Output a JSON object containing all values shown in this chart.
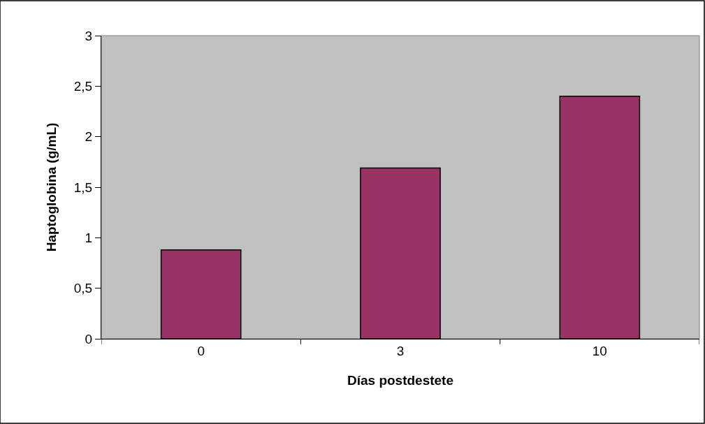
{
  "chart_data": {
    "type": "bar",
    "xlabel": "Días postdestete",
    "ylabel": "Haptoglobina (g/mL)",
    "categories": [
      "0",
      "3",
      "10"
    ],
    "values": [
      0.88,
      1.69,
      2.4
    ],
    "color": "#993366",
    "ylim": [
      0,
      3
    ],
    "yticks": [
      0,
      {
        "value": 0.5,
        "label": "0,5"
      },
      1,
      {
        "value": 1.5,
        "label": "1,5"
      },
      2,
      {
        "value": 2.5,
        "label": "2,5"
      },
      3
    ],
    "grid": false,
    "legend": false
  }
}
